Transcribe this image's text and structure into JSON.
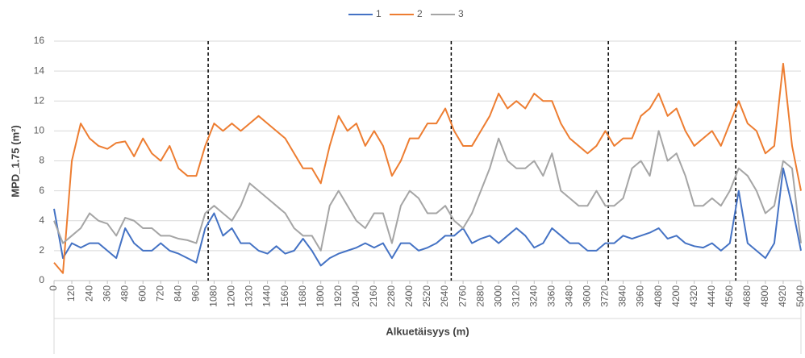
{
  "chart_data": {
    "type": "line",
    "y_label": "MPD_1.75 (m²)",
    "x_label": "Alkuetäisyys (m)",
    "xlim": [
      0,
      5040
    ],
    "ylim": [
      0,
      16
    ],
    "yticks": [
      0,
      2,
      4,
      6,
      8,
      10,
      12,
      14,
      16
    ],
    "xticks": [
      0,
      120,
      240,
      360,
      480,
      600,
      720,
      840,
      960,
      1080,
      1200,
      1320,
      1440,
      1560,
      1680,
      1800,
      1920,
      2040,
      2160,
      2280,
      2400,
      2520,
      2640,
      2760,
      2880,
      3000,
      3120,
      3240,
      3360,
      3480,
      3600,
      3720,
      3840,
      3960,
      4080,
      4200,
      4320,
      4440,
      4560,
      4680,
      4800,
      4920,
      5040
    ],
    "grid": true,
    "legend": "top",
    "reference_lines_x": [
      1040,
      2680,
      3740,
      4600
    ],
    "x": [
      0,
      60,
      120,
      180,
      240,
      300,
      360,
      420,
      480,
      540,
      600,
      660,
      720,
      780,
      840,
      900,
      960,
      1020,
      1080,
      1140,
      1200,
      1260,
      1320,
      1380,
      1440,
      1500,
      1560,
      1620,
      1680,
      1740,
      1800,
      1860,
      1920,
      1980,
      2040,
      2100,
      2160,
      2220,
      2280,
      2340,
      2400,
      2460,
      2520,
      2580,
      2640,
      2700,
      2760,
      2820,
      2880,
      2940,
      3000,
      3060,
      3120,
      3180,
      3240,
      3300,
      3360,
      3420,
      3480,
      3540,
      3600,
      3660,
      3720,
      3780,
      3840,
      3900,
      3960,
      4020,
      4080,
      4140,
      4200,
      4260,
      4320,
      4380,
      4440,
      4500,
      4560,
      4620,
      4680,
      4740,
      4800,
      4860,
      4920,
      4980,
      5040
    ],
    "series": [
      {
        "name": "1",
        "color": "#4472c4",
        "values": [
          4.8,
          1.5,
          2.5,
          2.2,
          2.5,
          2.5,
          2,
          1.5,
          3.5,
          2.5,
          2,
          2,
          2.5,
          2,
          1.8,
          1.5,
          1.2,
          3.5,
          4.5,
          3,
          3.5,
          2.5,
          2.5,
          2,
          1.8,
          2.3,
          1.8,
          2,
          2.8,
          2,
          1,
          1.5,
          1.8,
          2,
          2.2,
          2.5,
          2.2,
          2.5,
          1.5,
          2.5,
          2.5,
          2,
          2.2,
          2.5,
          3,
          3,
          3.5,
          2.5,
          2.8,
          3,
          2.5,
          3,
          3.5,
          3,
          2.2,
          2.5,
          3.5,
          3,
          2.5,
          2.5,
          2,
          2,
          2.5,
          2.5,
          3,
          2.8,
          3,
          3.2,
          3.5,
          2.8,
          3,
          2.5,
          2.3,
          2.2,
          2.5,
          2,
          2.5,
          6,
          2.5,
          2,
          1.5,
          2.5,
          7.5,
          5,
          2
        ]
      },
      {
        "name": "2",
        "color": "#ed7d31",
        "values": [
          1.2,
          0.5,
          8,
          10.5,
          9.5,
          9,
          8.8,
          9.2,
          9.3,
          8.3,
          9.5,
          8.5,
          8,
          9,
          7.5,
          7,
          7,
          9,
          10.5,
          10,
          10.5,
          10,
          10.5,
          11,
          10.5,
          10,
          9.5,
          8.5,
          7.5,
          7.5,
          6.5,
          9,
          11,
          10,
          10.5,
          9,
          10,
          9,
          7,
          8,
          9.5,
          9.5,
          10.5,
          10.5,
          11.5,
          10,
          9,
          9,
          10,
          11,
          12.5,
          11.5,
          12,
          11.5,
          12.5,
          12,
          12,
          10.5,
          9.5,
          9,
          8.5,
          9,
          10,
          9,
          9.5,
          9.5,
          11,
          11.5,
          12.5,
          11,
          11.5,
          10,
          9,
          9.5,
          10,
          9,
          10.5,
          12,
          10.5,
          10,
          8.5,
          9,
          14.5,
          9,
          6
        ]
      },
      {
        "name": "3",
        "color": "#a5a5a5",
        "values": [
          4,
          2.5,
          3,
          3.5,
          4.5,
          4,
          3.8,
          3,
          4.2,
          4,
          3.5,
          3.5,
          3,
          3,
          2.8,
          2.7,
          2.5,
          4.5,
          5,
          4.5,
          4,
          5,
          6.5,
          6,
          5.5,
          5,
          4.5,
          3.5,
          3,
          3,
          2,
          5,
          6,
          5,
          4,
          3.5,
          4.5,
          4.5,
          2.5,
          5,
          6,
          5.5,
          4.5,
          4.5,
          5,
          4,
          3.5,
          4.5,
          6,
          7.5,
          9.5,
          8,
          7.5,
          7.5,
          8,
          7,
          8.5,
          6,
          5.5,
          5,
          5,
          6,
          5,
          5,
          5.5,
          7.5,
          8,
          7,
          10,
          8,
          8.5,
          7,
          5,
          5,
          5.5,
          5,
          6,
          7.5,
          7,
          6,
          4.5,
          5,
          8,
          7.5,
          2.5
        ]
      }
    ]
  }
}
